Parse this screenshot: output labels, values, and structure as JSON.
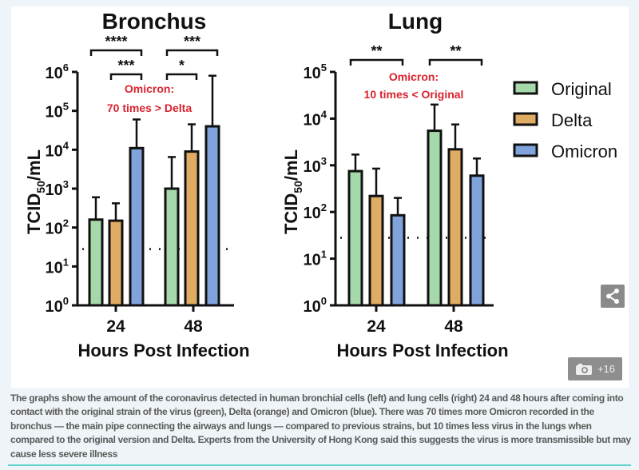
{
  "chart_data": [
    {
      "type": "bar",
      "title": "Bronchus",
      "xlabel": "Hours Post Infection",
      "ylabel": "TCID50/mL",
      "yscale": "log",
      "ylim": [
        1,
        1000000
      ],
      "yticks": [
        "10^0",
        "10^1",
        "10^2",
        "10^3",
        "10^4",
        "10^5",
        "10^6"
      ],
      "categories": [
        "24",
        "48"
      ],
      "detection_limit": 28,
      "series": [
        {
          "name": "Original",
          "values": [
            160,
            1000
          ],
          "error_upper": [
            600,
            6500
          ]
        },
        {
          "name": "Delta",
          "values": [
            150,
            9000
          ],
          "error_upper": [
            420,
            45000
          ]
        },
        {
          "name": "Omicron",
          "values": [
            11000,
            40000
          ],
          "error_upper": [
            60000,
            800000
          ]
        }
      ],
      "significance": [
        {
          "category": "24",
          "from": "Original",
          "to": "Omicron",
          "label": "****"
        },
        {
          "category": "24",
          "from": "Delta",
          "to": "Omicron",
          "label": "***"
        },
        {
          "category": "48",
          "from": "Original",
          "to": "Omicron",
          "label": "***"
        },
        {
          "category": "48",
          "from": "Original",
          "to": "Delta",
          "label": "*"
        }
      ],
      "annotation": [
        "Omicron:",
        "70 times > Delta"
      ]
    },
    {
      "type": "bar",
      "title": "Lung",
      "xlabel": "Hours Post Infection",
      "ylabel": "TCID50/mL",
      "yscale": "log",
      "ylim": [
        1,
        100000
      ],
      "yticks": [
        "10^0",
        "10^1",
        "10^2",
        "10^3",
        "10^4",
        "10^5"
      ],
      "categories": [
        "24",
        "48"
      ],
      "detection_limit": 28,
      "series": [
        {
          "name": "Original",
          "values": [
            750,
            5500
          ],
          "error_upper": [
            1700,
            20000
          ]
        },
        {
          "name": "Delta",
          "values": [
            220,
            2200
          ],
          "error_upper": [
            850,
            7500
          ]
        },
        {
          "name": "Omicron",
          "values": [
            85,
            600
          ],
          "error_upper": [
            200,
            1400
          ]
        }
      ],
      "significance": [
        {
          "category": "24",
          "from": "Original",
          "to": "Omicron",
          "label": "**"
        },
        {
          "category": "48",
          "from": "Original",
          "to": "Omicron",
          "label": "**"
        }
      ],
      "annotation": [
        "Omicron:",
        "10 times < Original"
      ]
    }
  ],
  "legend": {
    "placement": "right",
    "items": [
      "Original",
      "Delta",
      "Omicron"
    ]
  },
  "colors": {
    "Original": "#a6d9a9",
    "Delta": "#e0ab63",
    "Omicron": "#7fa3da",
    "annotation": "#d9232e"
  },
  "toolbar": {
    "share_icon": "share-icon",
    "gallery_icon": "camera-icon",
    "gallery_count": "+16"
  },
  "caption": "The graphs show the amount of the coronavirus detected in human bronchial cells (left) and lung cells (right) 24 and 48 hours after coming into contact with the original strain of the virus (green), Delta (orange) and Omicron (blue). There was 70 times more Omicron recorded in the bronchus — the main pipe connecting the airways and lungs — compared to previous strains, but 10 times less virus in the lungs when compared to the original version and Delta. Experts from the University of Hong Kong said this suggests the virus is more transmissible but may cause less severe illness"
}
